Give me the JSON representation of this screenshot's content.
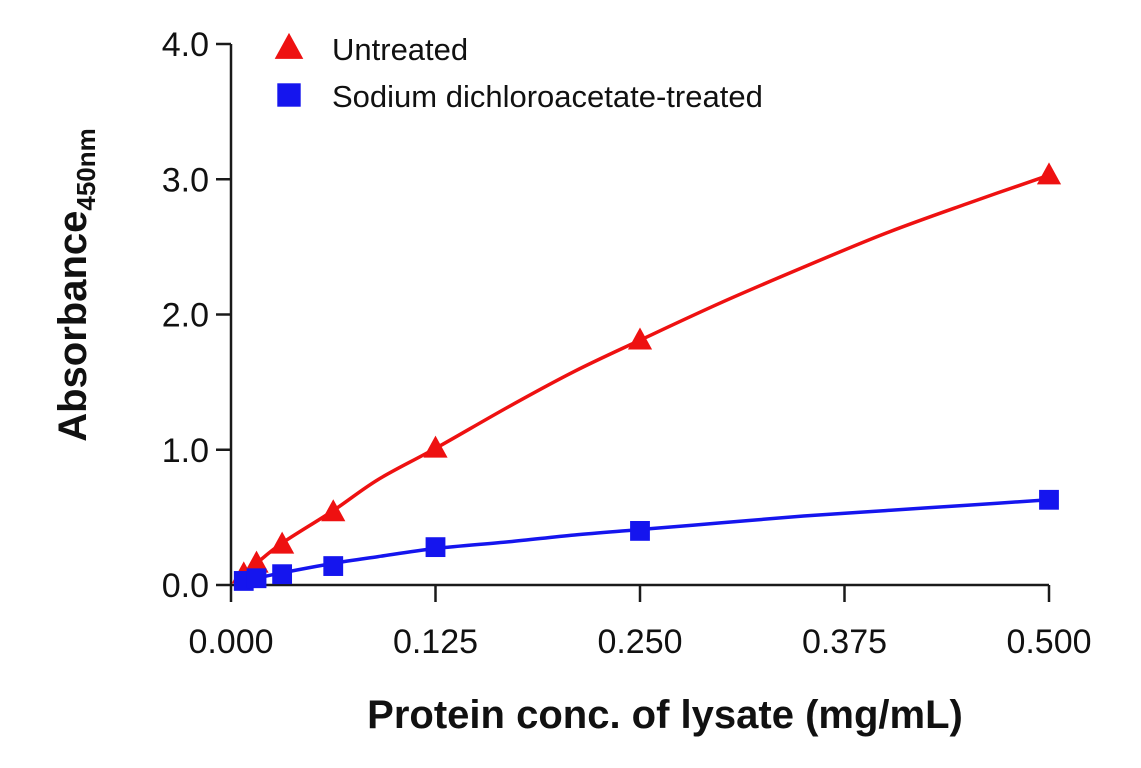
{
  "chart_data": {
    "type": "scatter",
    "title": "",
    "xlabel": "Protein conc. of lysate (mg/mL)",
    "ylabel": "Absorbance",
    "ylabel_subscript": "450nm",
    "xlim": [
      0,
      0.5
    ],
    "ylim": [
      0,
      4.0
    ],
    "x_ticks": [
      {
        "value": 0,
        "label": "0.000"
      },
      {
        "value": 0.125,
        "label": "0.125"
      },
      {
        "value": 0.25,
        "label": "0.250"
      },
      {
        "value": 0.375,
        "label": "0.375"
      },
      {
        "value": 0.5,
        "label": "0.500"
      }
    ],
    "y_ticks": [
      {
        "value": 0,
        "label": "0.0"
      },
      {
        "value": 1,
        "label": "1.0"
      },
      {
        "value": 2,
        "label": "2.0"
      },
      {
        "value": 3,
        "label": "3.0"
      },
      {
        "value": 4,
        "label": "4.0"
      }
    ],
    "grid": false,
    "legend_position": "top-left",
    "series": [
      {
        "name": "Untreated",
        "color": "#ee1111",
        "marker": "triangle",
        "x": [
          0.0078,
          0.0156,
          0.03125,
          0.0625,
          0.125,
          0.25,
          0.5
        ],
        "y": [
          0.08,
          0.16,
          0.3,
          0.54,
          1.01,
          1.81,
          3.03
        ],
        "fit": [
          [
            0.0078,
            0.08
          ],
          [
            0.0156,
            0.16
          ],
          [
            0.03125,
            0.31
          ],
          [
            0.0625,
            0.55
          ],
          [
            0.09,
            0.78
          ],
          [
            0.125,
            1.01
          ],
          [
            0.17,
            1.32
          ],
          [
            0.21,
            1.58
          ],
          [
            0.25,
            1.81
          ],
          [
            0.3,
            2.09
          ],
          [
            0.35,
            2.35
          ],
          [
            0.4,
            2.6
          ],
          [
            0.45,
            2.82
          ],
          [
            0.5,
            3.03
          ]
        ]
      },
      {
        "name": "Sodium dichloroacetate-treated",
        "color": "#1515ee",
        "marker": "square",
        "x": [
          0.0078,
          0.0156,
          0.03125,
          0.0625,
          0.125,
          0.25,
          0.5
        ],
        "y": [
          0.03,
          0.05,
          0.08,
          0.14,
          0.28,
          0.4,
          0.63
        ],
        "fit": [
          [
            0.0078,
            0.03
          ],
          [
            0.0156,
            0.05
          ],
          [
            0.03125,
            0.09
          ],
          [
            0.0625,
            0.16
          ],
          [
            0.09,
            0.21
          ],
          [
            0.125,
            0.27
          ],
          [
            0.17,
            0.32
          ],
          [
            0.21,
            0.37
          ],
          [
            0.25,
            0.41
          ],
          [
            0.3,
            0.46
          ],
          [
            0.35,
            0.51
          ],
          [
            0.4,
            0.55
          ],
          [
            0.45,
            0.59
          ],
          [
            0.5,
            0.63
          ]
        ]
      }
    ]
  }
}
